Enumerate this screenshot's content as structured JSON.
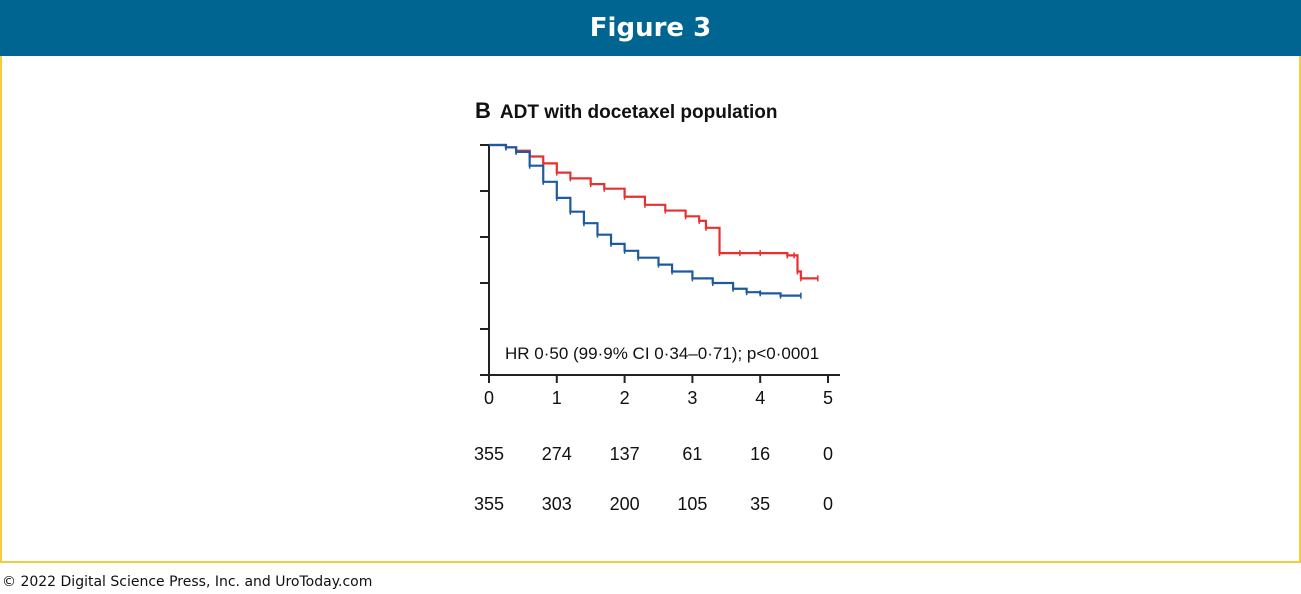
{
  "header": {
    "title": "Figure 3"
  },
  "footer": {
    "copyright": "© 2022 Digital Science Press, Inc. and UroToday.com"
  },
  "colors": {
    "header_bg": "#006691",
    "frame_border": "#f5cc3f",
    "series_red": "#e8312f",
    "series_blue": "#1d5aa0"
  },
  "chart_data": {
    "type": "line",
    "panel_letter": "B",
    "title": "ADT with docetaxel population",
    "annotation": "HR 0·50 (99·9% CI 0·34–0·71); p<0·0001",
    "xlim": [
      0,
      5
    ],
    "ylim": [
      0,
      1
    ],
    "x_ticks": [
      "0",
      "1",
      "2",
      "3",
      "4",
      "5"
    ],
    "y_ticks": [
      0,
      0.2,
      0.4,
      0.6,
      0.8,
      1.0
    ],
    "grid": false,
    "series": [
      {
        "color": "#e8312f",
        "x": [
          0,
          0.25,
          0.4,
          0.6,
          0.8,
          1.0,
          1.2,
          1.5,
          1.7,
          2.0,
          2.3,
          2.6,
          2.9,
          3.1,
          3.2,
          3.4,
          3.7,
          4.0,
          4.4,
          4.5,
          4.55,
          4.6,
          4.85
        ],
        "y": [
          1.0,
          0.99,
          0.975,
          0.95,
          0.92,
          0.88,
          0.855,
          0.83,
          0.81,
          0.775,
          0.74,
          0.715,
          0.69,
          0.67,
          0.64,
          0.53,
          0.53,
          0.53,
          0.52,
          0.52,
          0.45,
          0.42,
          0.42
        ]
      },
      {
        "color": "#1d5aa0",
        "x": [
          0,
          0.25,
          0.4,
          0.6,
          0.8,
          1.0,
          1.2,
          1.4,
          1.6,
          1.8,
          2.0,
          2.2,
          2.5,
          2.7,
          3.0,
          3.3,
          3.6,
          3.8,
          4.0,
          4.3,
          4.6
        ],
        "y": [
          1.0,
          0.99,
          0.97,
          0.91,
          0.84,
          0.77,
          0.71,
          0.66,
          0.61,
          0.57,
          0.54,
          0.51,
          0.48,
          0.45,
          0.42,
          0.4,
          0.375,
          0.36,
          0.355,
          0.345,
          0.345
        ]
      }
    ],
    "number_at_risk": [
      [
        "355",
        "274",
        "137",
        "61",
        "16",
        "0"
      ],
      [
        "355",
        "303",
        "200",
        "105",
        "35",
        "0"
      ]
    ]
  }
}
